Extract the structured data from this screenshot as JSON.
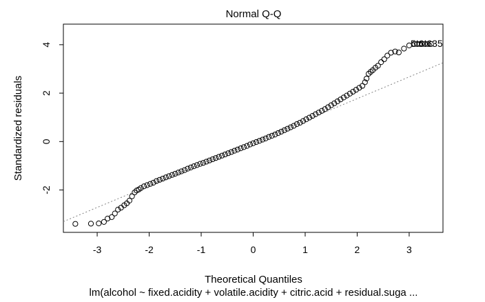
{
  "chart_data": {
    "type": "scatter",
    "title": "Normal Q-Q",
    "xlabel": "Theoretical Quantiles",
    "ylabel": "Standardized residuals",
    "subtitle": "lm(alcohol ~ fixed.acidity + volatile.acidity + citric.acid + residual.suga ...",
    "xlim": [
      -3.65,
      3.65
    ],
    "ylim": [
      -3.75,
      4.85
    ],
    "xticks": [
      -3,
      -2,
      -1,
      0,
      1,
      2,
      3
    ],
    "yticks": [
      -2,
      0,
      2,
      4
    ],
    "reference_line": {
      "x": [
        -3.7,
        3.7
      ],
      "y": [
        -3.35,
        3.3
      ],
      "style": "dotted",
      "color": "#808080"
    },
    "point_labels": [
      "5",
      "6",
      "6",
      "5",
      "3",
      "5",
      "5"
    ],
    "point_label_text": "5!6!635",
    "point_style": {
      "shape": "open-circle",
      "color": "#000000"
    },
    "series": [
      {
        "points": [
          [
            -3.42,
            -3.4
          ],
          [
            -3.12,
            -3.39
          ],
          [
            -2.97,
            -3.38
          ],
          [
            -2.87,
            -3.32
          ],
          [
            -2.8,
            -3.18
          ],
          [
            -2.72,
            -3.12
          ],
          [
            -2.66,
            -2.97
          ],
          [
            -2.6,
            -2.81
          ],
          [
            -2.54,
            -2.73
          ],
          [
            -2.48,
            -2.63
          ],
          [
            -2.43,
            -2.55
          ],
          [
            -2.38,
            -2.44
          ],
          [
            -2.33,
            -2.26
          ],
          [
            -2.28,
            -2.1
          ],
          [
            -2.24,
            -2.02
          ],
          [
            -2.2,
            -1.98
          ],
          [
            -2.16,
            -1.92
          ],
          [
            -2.1,
            -1.85
          ],
          [
            -2.04,
            -1.8
          ],
          [
            -1.98,
            -1.75
          ],
          [
            -1.92,
            -1.7
          ],
          [
            -1.86,
            -1.63
          ],
          [
            -1.8,
            -1.58
          ],
          [
            -1.74,
            -1.53
          ],
          [
            -1.68,
            -1.48
          ],
          [
            -1.62,
            -1.43
          ],
          [
            -1.56,
            -1.38
          ],
          [
            -1.5,
            -1.33
          ],
          [
            -1.44,
            -1.28
          ],
          [
            -1.38,
            -1.23
          ],
          [
            -1.32,
            -1.18
          ],
          [
            -1.26,
            -1.12
          ],
          [
            -1.2,
            -1.07
          ],
          [
            -1.14,
            -1.02
          ],
          [
            -1.08,
            -0.97
          ],
          [
            -1.02,
            -0.92
          ],
          [
            -0.96,
            -0.88
          ],
          [
            -0.9,
            -0.83
          ],
          [
            -0.84,
            -0.78
          ],
          [
            -0.78,
            -0.73
          ],
          [
            -0.72,
            -0.68
          ],
          [
            -0.66,
            -0.63
          ],
          [
            -0.6,
            -0.58
          ],
          [
            -0.54,
            -0.53
          ],
          [
            -0.48,
            -0.48
          ],
          [
            -0.42,
            -0.43
          ],
          [
            -0.36,
            -0.38
          ],
          [
            -0.3,
            -0.33
          ],
          [
            -0.24,
            -0.28
          ],
          [
            -0.18,
            -0.23
          ],
          [
            -0.12,
            -0.18
          ],
          [
            -0.06,
            -0.12
          ],
          [
            0.0,
            -0.07
          ],
          [
            0.06,
            -0.02
          ],
          [
            0.12,
            0.03
          ],
          [
            0.18,
            0.08
          ],
          [
            0.24,
            0.13
          ],
          [
            0.3,
            0.19
          ],
          [
            0.36,
            0.24
          ],
          [
            0.42,
            0.29
          ],
          [
            0.48,
            0.35
          ],
          [
            0.54,
            0.41
          ],
          [
            0.6,
            0.47
          ],
          [
            0.66,
            0.53
          ],
          [
            0.72,
            0.59
          ],
          [
            0.78,
            0.65
          ],
          [
            0.84,
            0.72
          ],
          [
            0.9,
            0.78
          ],
          [
            0.96,
            0.85
          ],
          [
            1.02,
            0.92
          ],
          [
            1.08,
            0.99
          ],
          [
            1.14,
            1.06
          ],
          [
            1.2,
            1.13
          ],
          [
            1.26,
            1.2
          ],
          [
            1.32,
            1.27
          ],
          [
            1.38,
            1.34
          ],
          [
            1.44,
            1.42
          ],
          [
            1.5,
            1.5
          ],
          [
            1.56,
            1.58
          ],
          [
            1.62,
            1.66
          ],
          [
            1.68,
            1.74
          ],
          [
            1.74,
            1.82
          ],
          [
            1.8,
            1.9
          ],
          [
            1.86,
            1.98
          ],
          [
            1.92,
            2.06
          ],
          [
            1.98,
            2.14
          ],
          [
            2.04,
            2.22
          ],
          [
            2.1,
            2.3
          ],
          [
            2.15,
            2.45
          ],
          [
            2.18,
            2.6
          ],
          [
            2.22,
            2.8
          ],
          [
            2.26,
            2.88
          ],
          [
            2.3,
            2.95
          ],
          [
            2.35,
            3.05
          ],
          [
            2.4,
            3.13
          ],
          [
            2.46,
            3.28
          ],
          [
            2.52,
            3.4
          ],
          [
            2.58,
            3.55
          ],
          [
            2.65,
            3.67
          ],
          [
            2.73,
            3.72
          ],
          [
            2.8,
            3.68
          ],
          [
            2.9,
            3.84
          ],
          [
            3.0,
            3.97
          ],
          [
            3.1,
            4.03
          ],
          [
            3.15,
            4.03
          ],
          [
            3.2,
            4.03
          ],
          [
            3.25,
            4.03
          ],
          [
            3.3,
            4.03
          ],
          [
            3.35,
            4.03
          ],
          [
            3.42,
            4.03
          ]
        ]
      }
    ]
  }
}
